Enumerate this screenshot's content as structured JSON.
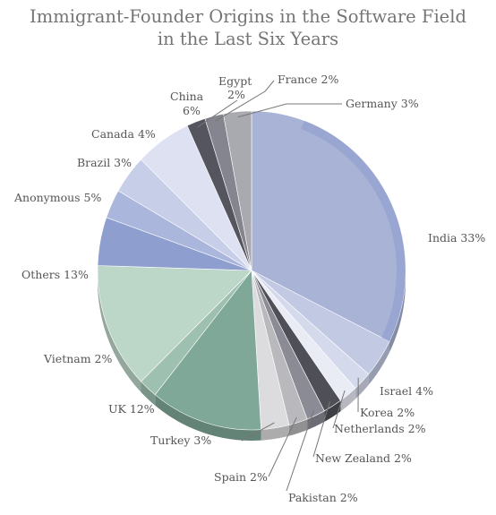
{
  "chart_data": {
    "type": "pie",
    "title_line1": "Immigrant-Founder Origins in the Software Field",
    "title_line2": "in the Last Six Years",
    "slices": [
      {
        "label": "India",
        "value": 33,
        "text": "India 33%",
        "color": "#a8b3d6"
      },
      {
        "label": "Israel",
        "value": 4,
        "text": "Israel 4%",
        "color": "#c2c9e3"
      },
      {
        "label": "Korea",
        "value": 2,
        "text": "Korea 2%",
        "color": "#d5d9ec"
      },
      {
        "label": "Netherlands",
        "value": 2,
        "text": "Netherlands 2%",
        "color": "#e9ebf5"
      },
      {
        "label": "New Zealand",
        "value": 2,
        "text": "New Zealand 2%",
        "color": "#4f4f58"
      },
      {
        "label": "Pakistan",
        "value": 2,
        "text": "Pakistan 2%",
        "color": "#8b8b95"
      },
      {
        "label": "Spain",
        "value": 2,
        "text": "Spain 2%",
        "color": "#b9b9bd"
      },
      {
        "label": "Turkey",
        "value": 3,
        "text": "Turkey 3%",
        "color": "#dcdcde"
      },
      {
        "label": "UK",
        "value": 12,
        "text": "UK 12%",
        "color": "#7fa898"
      },
      {
        "label": "Vietnam",
        "value": 2,
        "text": "Vietnam 2%",
        "color": "#9dc0b0"
      },
      {
        "label": "Others",
        "value": 13,
        "text": "Others 13%",
        "color": "#bcd6c8"
      },
      {
        "label": "Anonymous",
        "value": 5,
        "text": "Anonymous 5%",
        "color": "#8e9fcf"
      },
      {
        "label": "Brazil",
        "value": 3,
        "text": "Brazil 3%",
        "color": "#aab6db"
      },
      {
        "label": "Canada",
        "value": 4,
        "text": "Canada 4%",
        "color": "#c7cee8"
      },
      {
        "label": "China",
        "value": 6,
        "text": "China 6%",
        "color": "#dde1f1"
      },
      {
        "label": "Egypt",
        "value": 2,
        "text": "Egypt 2%",
        "color": "#55555f"
      },
      {
        "label": "France",
        "value": 2,
        "text": "France 2%",
        "color": "#85858f"
      },
      {
        "label": "Germany",
        "value": 3,
        "text": "Germany 3%",
        "color": "#a9a9b0"
      }
    ]
  }
}
